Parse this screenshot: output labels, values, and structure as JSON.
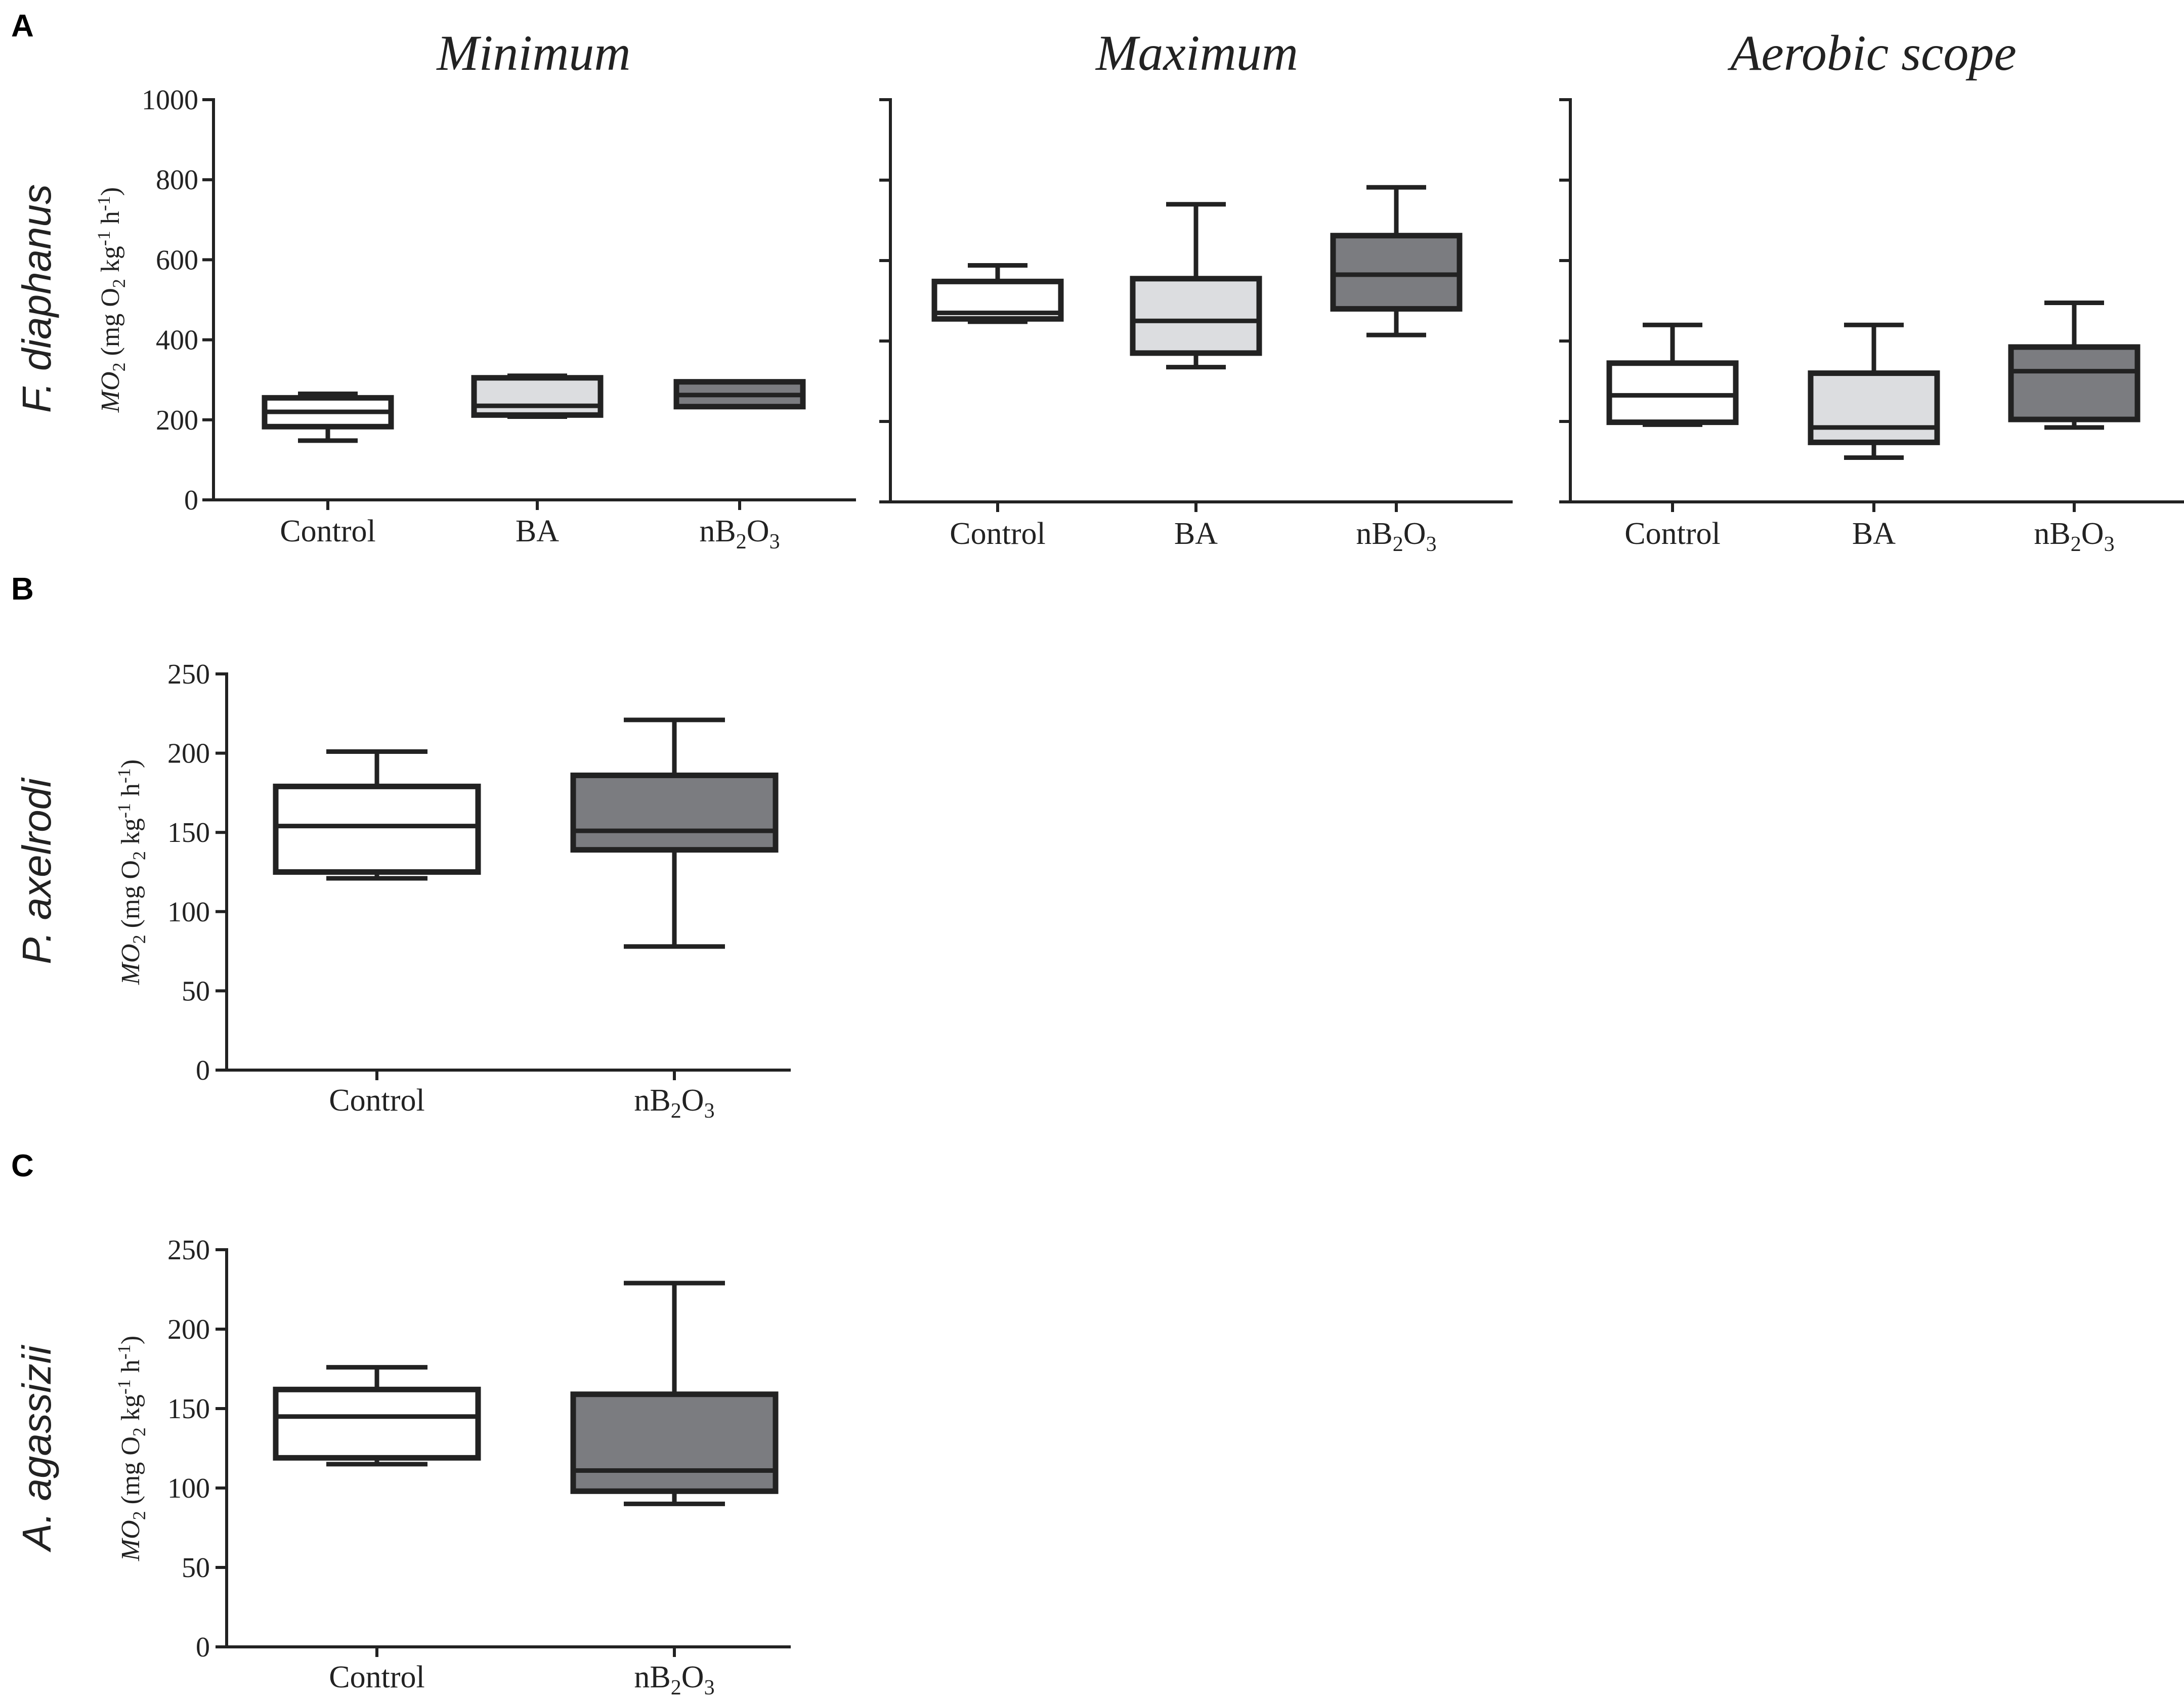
{
  "figure": {
    "colors": {
      "Control": "#ffffff",
      "BA": "#dcdde0",
      "nB2O3": "#7b7c80",
      "stroke": "#222222"
    },
    "ylabel": {
      "prefix": "MO",
      "prefix_sub": "2",
      "open": " (mg O",
      "o2_sub": "2",
      "kg": " kg",
      "kg_sup": "-1",
      "h": " h",
      "h_sup": "-1",
      "close": ")"
    }
  },
  "panels": [
    {
      "letter": "A",
      "species": "F. diaphanus"
    },
    {
      "letter": "B",
      "species": "P. axelrodi"
    },
    {
      "letter": "C",
      "species": "A. agassizii"
    }
  ],
  "chart_data": [
    {
      "type": "box",
      "panel": "A",
      "subtitle": "Minimum",
      "ylim": [
        0,
        1000
      ],
      "yticks": [
        0,
        200,
        400,
        600,
        800,
        1000
      ],
      "show_tick_labels": true,
      "categories": [
        "Control",
        "BA",
        "nB2O3"
      ],
      "series": [
        {
          "category": "Control",
          "min": 148,
          "q1": 183,
          "median": 220,
          "q3": 255,
          "max": 265,
          "fill": "Control"
        },
        {
          "category": "BA",
          "min": 208,
          "q1": 212,
          "median": 235,
          "q3": 305,
          "max": 310,
          "fill": "BA"
        },
        {
          "category": "nB2O3",
          "min": 233,
          "q1": 233,
          "median": 262,
          "q3": 295,
          "max": 295,
          "fill": "nB2O3"
        }
      ]
    },
    {
      "type": "box",
      "panel": "A",
      "subtitle": "Maximum",
      "ylim": [
        0,
        1000
      ],
      "yticks": [
        0,
        200,
        400,
        600,
        800,
        1000
      ],
      "show_tick_labels": false,
      "categories": [
        "Control",
        "BA",
        "nB2O3"
      ],
      "series": [
        {
          "category": "Control",
          "min": 448,
          "q1": 455,
          "median": 470,
          "q3": 548,
          "max": 588,
          "fill": "Control"
        },
        {
          "category": "BA",
          "min": 335,
          "q1": 370,
          "median": 450,
          "q3": 555,
          "max": 740,
          "fill": "BA"
        },
        {
          "category": "nB2O3",
          "min": 415,
          "q1": 480,
          "median": 565,
          "q3": 662,
          "max": 782,
          "fill": "nB2O3"
        }
      ]
    },
    {
      "type": "box",
      "panel": "A",
      "subtitle": "Aerobic scope",
      "ylim": [
        0,
        1000
      ],
      "yticks": [
        0,
        200,
        400,
        600,
        800,
        1000
      ],
      "show_tick_labels": false,
      "categories": [
        "Control",
        "BA",
        "nB2O3"
      ],
      "series": [
        {
          "category": "Control",
          "min": 192,
          "q1": 198,
          "median": 265,
          "q3": 345,
          "max": 440,
          "fill": "Control"
        },
        {
          "category": "BA",
          "min": 110,
          "q1": 148,
          "median": 185,
          "q3": 320,
          "max": 440,
          "fill": "BA"
        },
        {
          "category": "nB2O3",
          "min": 185,
          "q1": 205,
          "median": 325,
          "q3": 385,
          "max": 495,
          "fill": "nB2O3"
        }
      ]
    },
    {
      "type": "box",
      "panel": "B",
      "subtitle": "",
      "ylim": [
        0,
        250
      ],
      "yticks": [
        0,
        50,
        100,
        150,
        200,
        250
      ],
      "show_tick_labels": true,
      "categories": [
        "Control",
        "nB2O3"
      ],
      "series": [
        {
          "category": "Control",
          "min": 121,
          "q1": 125,
          "median": 154,
          "q3": 179,
          "max": 201,
          "fill": "Control"
        },
        {
          "category": "nB2O3",
          "min": 78,
          "q1": 139,
          "median": 151,
          "q3": 186,
          "max": 221,
          "fill": "nB2O3"
        }
      ]
    },
    {
      "type": "box",
      "panel": "C",
      "subtitle": "",
      "ylim": [
        0,
        250
      ],
      "yticks": [
        0,
        50,
        100,
        150,
        200,
        250
      ],
      "show_tick_labels": true,
      "categories": [
        "Control",
        "nB2O3"
      ],
      "series": [
        {
          "category": "Control",
          "min": 115,
          "q1": 119,
          "median": 145,
          "q3": 162,
          "max": 176,
          "fill": "Control"
        },
        {
          "category": "nB2O3",
          "min": 90,
          "q1": 98,
          "median": 111,
          "q3": 159,
          "max": 229,
          "fill": "nB2O3"
        }
      ]
    }
  ]
}
